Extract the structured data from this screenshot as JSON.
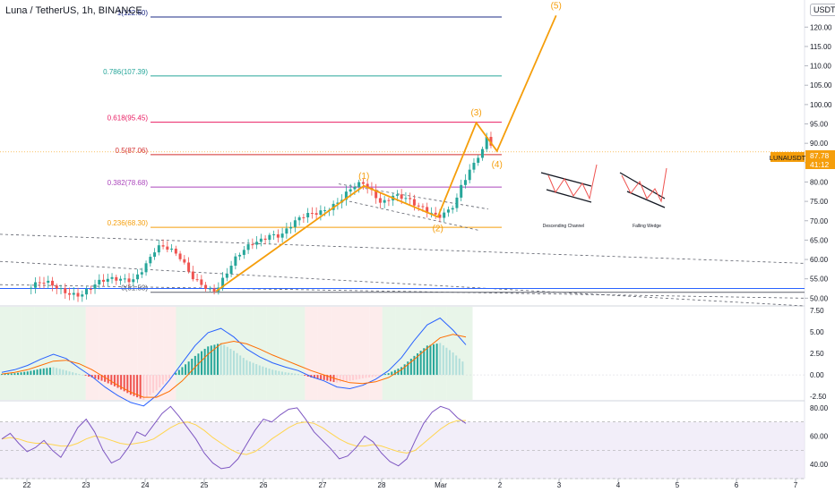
{
  "title": "Luna / TetherUS, 1h, BINANCE",
  "currency_badge": "USDT",
  "symbol_badge": {
    "label": "LUNAUSDT",
    "price": "87.78",
    "countdown": "41:12"
  },
  "chart_data": [
    {
      "type": "candlestick",
      "ylim": [
        48,
        127
      ],
      "price_ticks": [
        "120.00",
        "115.00",
        "110.00",
        "105.00",
        "100.00",
        "95.00",
        "90.00",
        "85.00",
        "80.00",
        "75.00",
        "70.00",
        "65.00",
        "60.00",
        "55.00",
        "50.00"
      ],
      "x_ticks": [
        "22",
        "23",
        "24",
        "25",
        "26",
        "27",
        "28",
        "Mar",
        "2",
        "3",
        "4",
        "5",
        "6",
        "7"
      ],
      "data_extent_days": [
        0,
        7.9
      ],
      "closes": [
        {
          "t": 0.0,
          "p": 52.5
        },
        {
          "t": 0.3,
          "p": 53.5
        },
        {
          "t": 0.6,
          "p": 52.2
        },
        {
          "t": 0.9,
          "p": 51.5
        },
        {
          "t": 1.2,
          "p": 53.5
        },
        {
          "t": 1.5,
          "p": 54.5
        },
        {
          "t": 1.8,
          "p": 55.5
        },
        {
          "t": 2.0,
          "p": 59.0
        },
        {
          "t": 2.1,
          "p": 61.0
        },
        {
          "t": 2.2,
          "p": 63.0
        },
        {
          "t": 2.4,
          "p": 62.0
        },
        {
          "t": 2.6,
          "p": 60.0
        },
        {
          "t": 2.8,
          "p": 56.0
        },
        {
          "t": 2.95,
          "p": 54.5
        },
        {
          "t": 3.1,
          "p": 52.5
        },
        {
          "t": 3.2,
          "p": 52.0
        },
        {
          "t": 3.35,
          "p": 55.0
        },
        {
          "t": 3.55,
          "p": 60.0
        },
        {
          "t": 3.8,
          "p": 64.5
        },
        {
          "t": 4.1,
          "p": 67.0
        },
        {
          "t": 4.3,
          "p": 66.0
        },
        {
          "t": 4.5,
          "p": 68.5
        },
        {
          "t": 4.7,
          "p": 71.0
        },
        {
          "t": 4.9,
          "p": 72.5
        },
        {
          "t": 5.1,
          "p": 74.0
        },
        {
          "t": 5.3,
          "p": 75.5
        },
        {
          "t": 5.5,
          "p": 78.0
        },
        {
          "t": 5.7,
          "p": 79.0
        },
        {
          "t": 5.85,
          "p": 77.0
        },
        {
          "t": 6.0,
          "p": 75.0
        },
        {
          "t": 6.2,
          "p": 77.5
        },
        {
          "t": 6.4,
          "p": 76.0
        },
        {
          "t": 6.6,
          "p": 73.0
        },
        {
          "t": 6.8,
          "p": 71.5
        },
        {
          "t": 6.95,
          "p": 71.0
        },
        {
          "t": 7.1,
          "p": 73.0
        },
        {
          "t": 7.25,
          "p": 75.5
        },
        {
          "t": 7.35,
          "p": 80.0
        },
        {
          "t": 7.5,
          "p": 83.0
        },
        {
          "t": 7.6,
          "p": 85.5
        },
        {
          "t": 7.7,
          "p": 87.0
        },
        {
          "t": 7.78,
          "p": 91.0
        },
        {
          "t": 7.85,
          "p": 89.0
        },
        {
          "t": 7.9,
          "p": 87.8
        }
      ],
      "fib_levels": [
        {
          "label": "1(122.60)",
          "value": 122.6,
          "color": "#1e2b86"
        },
        {
          "label": "0.786(107.39)",
          "value": 107.39,
          "color": "#26a69a"
        },
        {
          "label": "0.618(95.45)",
          "value": 95.45,
          "color": "#e91e63"
        },
        {
          "label": "0.5(87.06)",
          "value": 87.06,
          "color": "#d32f2f"
        },
        {
          "label": "0.382(78.68)",
          "value": 78.68,
          "color": "#ab47bc"
        },
        {
          "label": "0.236(68.30)",
          "value": 68.3,
          "color": "#f59e0b"
        },
        {
          "label": "0(51.53)",
          "value": 51.53,
          "color": "#5d606b"
        }
      ],
      "elliott_waves": [
        {
          "label": "(1)",
          "t": 5.7,
          "p": 79.0
        },
        {
          "label": "(2)",
          "t": 6.95,
          "p": 71.0
        },
        {
          "label": "(3)",
          "t": 7.6,
          "p": 95.3
        },
        {
          "label": "(4)",
          "t": 7.95,
          "p": 88.0
        },
        {
          "label": "(5)",
          "t": 8.95,
          "p": 123.0
        }
      ],
      "wave_start": {
        "t": 3.2,
        "p": 51.8
      },
      "wave_color": "#f59e0b",
      "current_price": 87.78,
      "pattern_legends": [
        {
          "label": "Descending Channel"
        },
        {
          "label": "Falling Wedge"
        }
      ]
    },
    {
      "type": "macd",
      "ylim": [
        -3.0,
        8.0
      ],
      "ticks": [
        "7.50",
        "5.00",
        "2.50",
        "0.00",
        "-2.50"
      ],
      "histogram_series": [
        0.1,
        0.2,
        0.4,
        0.7,
        0.9,
        0.5,
        0.1,
        -0.3,
        -0.8,
        -1.5,
        -2.3,
        -2.9,
        -1.8,
        -0.4,
        0.9,
        2.2,
        3.3,
        3.7,
        2.8,
        1.7,
        1.1,
        0.6,
        0.3,
        0.1,
        -0.3,
        -0.6,
        -0.9,
        -0.7,
        -0.4,
        -0.2,
        0.2,
        0.9,
        2.2,
        3.4,
        3.7,
        2.6,
        1.2
      ],
      "macd_line": [
        0.3,
        0.6,
        1.1,
        1.8,
        2.4,
        1.9,
        0.8,
        -0.2,
        -1.4,
        -2.4,
        -3.2,
        -3.6,
        -2.4,
        -0.6,
        1.4,
        3.4,
        4.9,
        5.4,
        4.4,
        3.0,
        2.1,
        1.4,
        0.9,
        0.5,
        -0.2,
        -0.7,
        -1.4,
        -1.6,
        -1.2,
        -0.5,
        0.5,
        2.0,
        4.0,
        5.8,
        6.6,
        5.2,
        3.5
      ],
      "signal_line": [
        0.1,
        0.3,
        0.6,
        1.1,
        1.6,
        1.7,
        1.3,
        0.6,
        -0.3,
        -1.2,
        -2.0,
        -2.6,
        -2.6,
        -1.9,
        -0.7,
        0.9,
        2.4,
        3.6,
        3.9,
        3.6,
        3.0,
        2.3,
        1.7,
        1.1,
        0.5,
        0.0,
        -0.5,
        -0.9,
        -1.0,
        -0.8,
        -0.3,
        0.6,
        1.8,
        3.1,
        4.3,
        4.7,
        4.4
      ],
      "macd_color": "#2962ff",
      "signal_color": "#ff6d00"
    },
    {
      "type": "rsi",
      "ylim": [
        30,
        85
      ],
      "ticks": [
        "80.00",
        "60.00",
        "40.00"
      ],
      "rsi_series": [
        58,
        62,
        55,
        49,
        52,
        57,
        50,
        45,
        55,
        66,
        72,
        63,
        50,
        41,
        44,
        52,
        63,
        60,
        68,
        76,
        81,
        74,
        66,
        58,
        48,
        41,
        37,
        38,
        44,
        54,
        64,
        72,
        70,
        75,
        79,
        80,
        72,
        63,
        57,
        51,
        44,
        46,
        52,
        60,
        56,
        48,
        42,
        39,
        44,
        57,
        69,
        77,
        81,
        79,
        73,
        69
      ],
      "ma_series": [
        58,
        59,
        58,
        56,
        55,
        55,
        54,
        53,
        53,
        55,
        58,
        60,
        59,
        57,
        55,
        54,
        55,
        56,
        58,
        62,
        66,
        69,
        70,
        68,
        64,
        59,
        55,
        51,
        48,
        47,
        49,
        53,
        58,
        62,
        66,
        69,
        70,
        69,
        66,
        62,
        58,
        55,
        53,
        53,
        54,
        53,
        51,
        49,
        48,
        50,
        55,
        60,
        65,
        69,
        71,
        71
      ],
      "rsi_color": "#7e57c2",
      "ma_color": "#ffd54f"
    }
  ]
}
